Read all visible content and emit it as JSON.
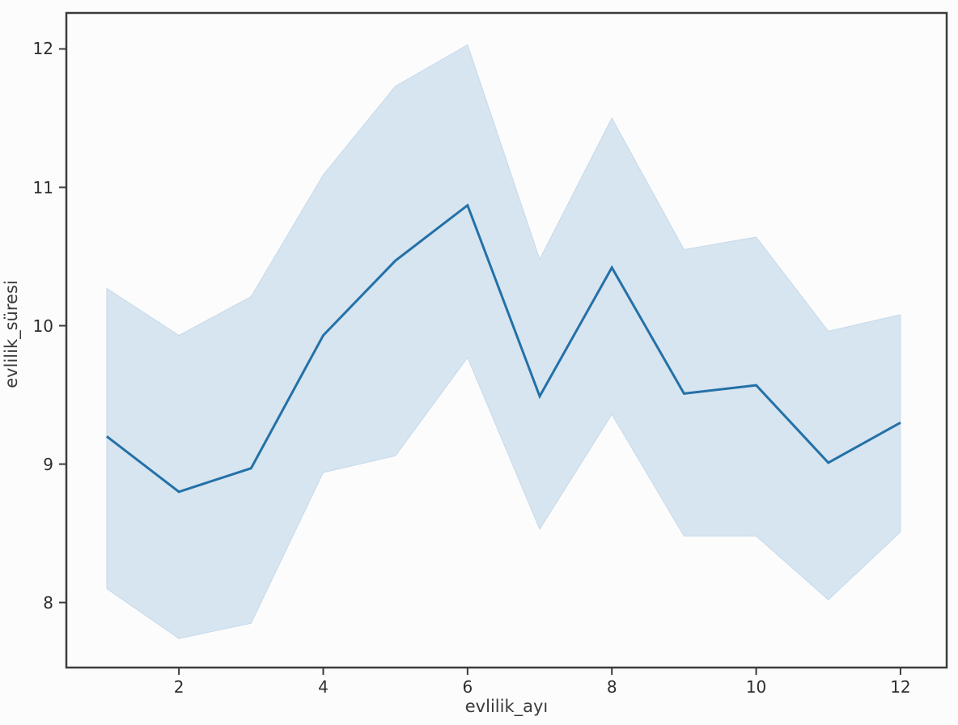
{
  "chart_data": {
    "type": "line",
    "title": "",
    "xlabel": "evlilik_ayı",
    "ylabel": "evlilik_süresi",
    "x": [
      1,
      2,
      3,
      4,
      5,
      6,
      7,
      8,
      9,
      10,
      11,
      12
    ],
    "series": [
      {
        "name": "evlilik_süresi (mean)",
        "values": [
          9.2,
          8.8,
          8.97,
          9.93,
          10.47,
          10.87,
          9.49,
          10.42,
          9.51,
          9.57,
          9.01,
          9.3
        ]
      }
    ],
    "band_upper": [
      10.27,
      9.93,
      10.21,
      11.09,
      11.73,
      12.03,
      10.48,
      11.5,
      10.55,
      10.64,
      9.96,
      10.08
    ],
    "band_lower": [
      8.1,
      7.74,
      7.85,
      8.94,
      9.06,
      9.77,
      8.53,
      9.36,
      8.48,
      8.48,
      8.02,
      8.51
    ],
    "x_ticks": [
      "2",
      "4",
      "6",
      "8",
      "10",
      "12"
    ],
    "x_tick_values": [
      2,
      4,
      6,
      8,
      10,
      12
    ],
    "y_ticks": [
      "8",
      "9",
      "10",
      "11",
      "12"
    ],
    "y_tick_values": [
      8,
      9,
      10,
      11,
      12
    ],
    "xlim": [
      0.44,
      12.64
    ],
    "ylim": [
      7.53,
      12.26
    ],
    "grid": false,
    "legend": "none",
    "line_color": "#2471a8",
    "band_color": "#d7e5f1",
    "band_edge_color": "#c6d9e9",
    "spine_color": "#3c3c3c",
    "tick_color": "#3c3c3c"
  }
}
